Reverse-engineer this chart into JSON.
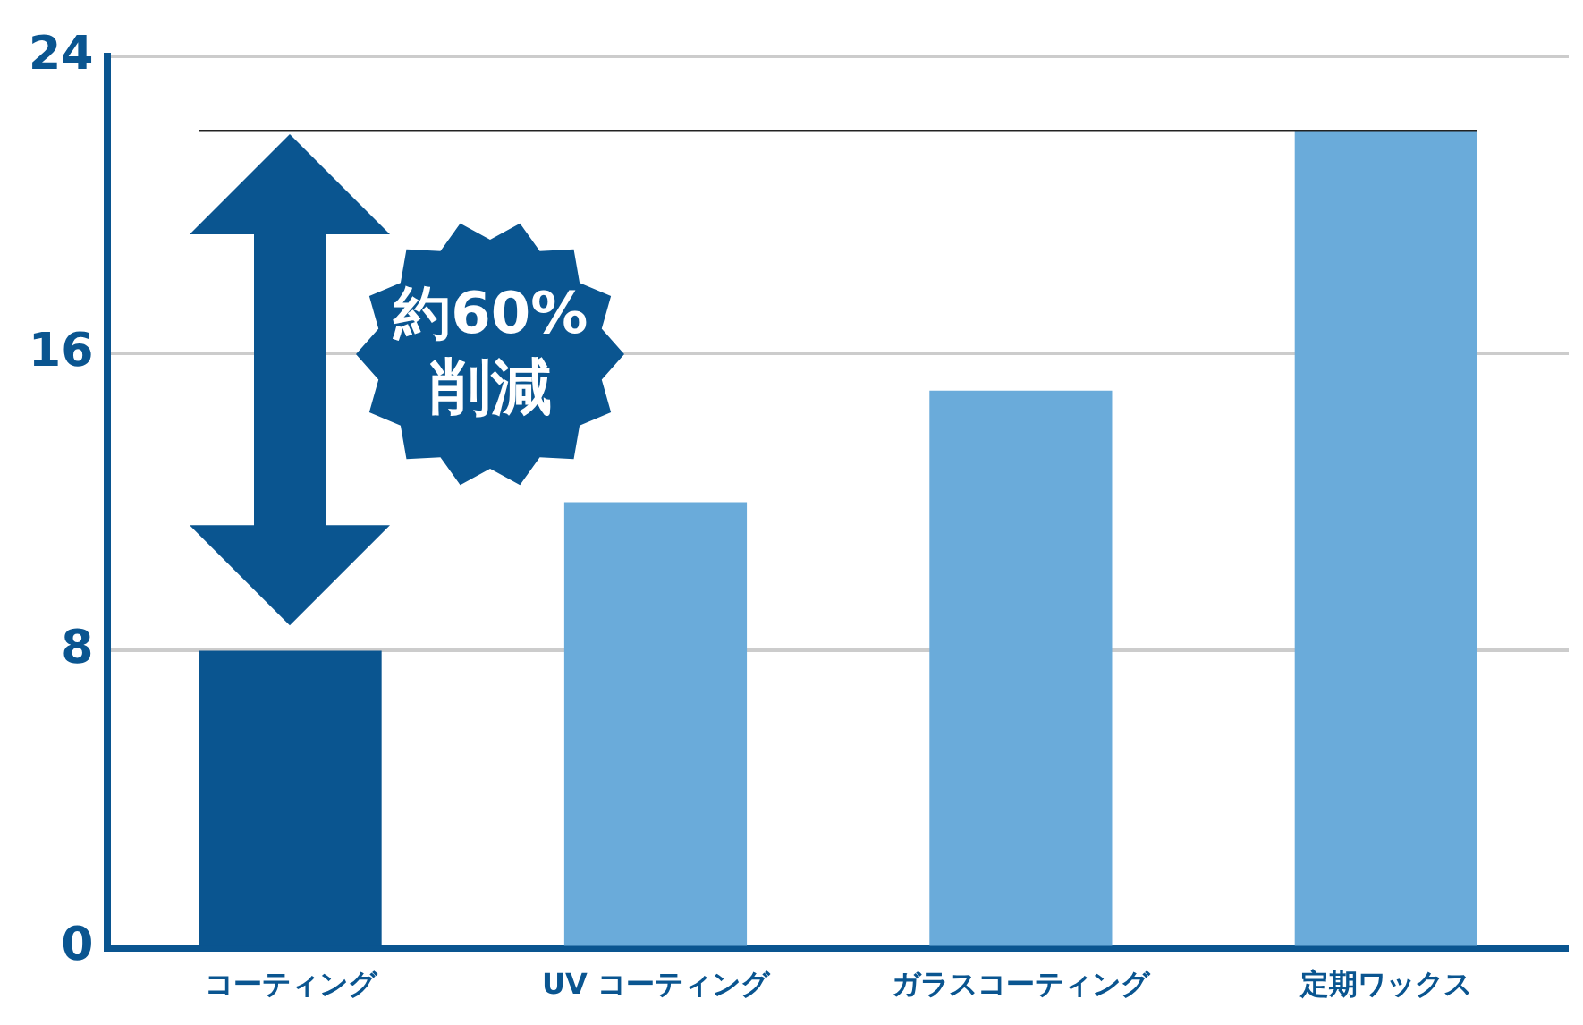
{
  "chart_data": {
    "type": "bar",
    "categories": [
      "コーティング",
      "UV コーティング",
      "ガラスコーティング",
      "定期ワックス"
    ],
    "values": [
      8,
      12,
      15,
      22
    ],
    "colors": [
      "#0a5590",
      "#6aabda",
      "#6aabda",
      "#6aabda"
    ],
    "ylim": [
      0,
      24
    ],
    "yticks": [
      0,
      8,
      16,
      24
    ],
    "grid": "y",
    "legend": false,
    "ref_lines": [
      {
        "axis": "y",
        "value": 22,
        "color": "#222222"
      }
    ],
    "annotations": [
      "約60%",
      "削減"
    ]
  }
}
